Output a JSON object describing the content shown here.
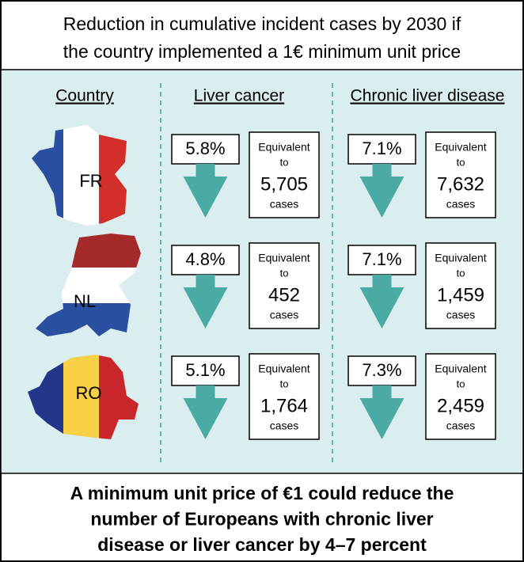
{
  "header": {
    "title_lines": [
      "Reduction in cumulative incident cases by 2030 if",
      "the country implemented a 1€ minimum unit price"
    ]
  },
  "columns": [
    "Country",
    "Liver cancer",
    "Chronic liver disease"
  ],
  "rows": [
    {
      "country": "FR",
      "liver_cancer": {
        "percent": "5.8%",
        "line1": "Equivalent",
        "line2": "to",
        "count": "5,705",
        "unit": "cases"
      },
      "chronic_liver_disease": {
        "percent": "7.1%",
        "line1": "Equivalent",
        "line2": "to",
        "count": "7,632",
        "unit": "cases"
      }
    },
    {
      "country": "NL",
      "liver_cancer": {
        "percent": "4.8%",
        "line1": "Equivalent",
        "line2": "to",
        "count": "452",
        "unit": "cases"
      },
      "chronic_liver_disease": {
        "percent": "7.1%",
        "line1": "Equivalent",
        "line2": "to",
        "count": "1,459",
        "unit": "cases"
      }
    },
    {
      "country": "RO",
      "liver_cancer": {
        "percent": "5.1%",
        "line1": "Equivalent",
        "line2": "to",
        "count": "1,764",
        "unit": "cases"
      },
      "chronic_liver_disease": {
        "percent": "7.3%",
        "line1": "Equivalent",
        "line2": "to",
        "count": "2,459",
        "unit": "cases"
      }
    }
  ],
  "footer": {
    "lines": [
      "A minimum unit price of €1 could reduce the",
      "number of Europeans with chronic liver",
      "disease or liver cancer by 4–7 percent"
    ]
  }
}
